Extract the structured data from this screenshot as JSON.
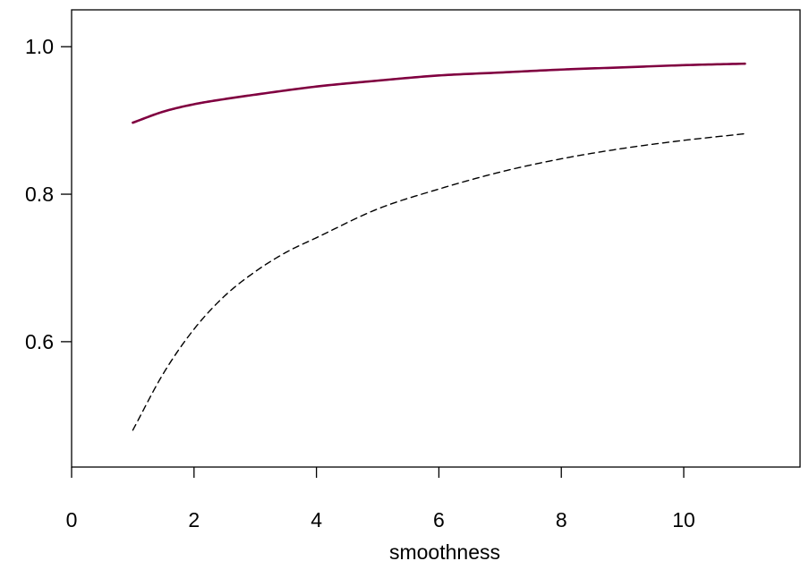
{
  "chart_data": {
    "type": "line",
    "title": "",
    "xlabel": "smoothness",
    "ylabel": "",
    "xlim": [
      0,
      11.9
    ],
    "ylim": [
      0.43,
      1.05
    ],
    "xticks": [
      0,
      2,
      4,
      6,
      8,
      10
    ],
    "yticks": [
      0.6,
      0.8,
      1.0
    ],
    "xtick_labels": [
      "0",
      "2",
      "4",
      "6",
      "8",
      "10"
    ],
    "ytick_labels": [
      "0.6",
      "0.8",
      "1.0"
    ],
    "grid": false,
    "legend": "none",
    "series": [
      {
        "color": "#800040",
        "style": "solid",
        "x": [
          1,
          1.5,
          2,
          2.5,
          3,
          4,
          5,
          6,
          7,
          8,
          9,
          10,
          11
        ],
        "y": [
          0.897,
          0.912,
          0.922,
          0.929,
          0.935,
          0.946,
          0.954,
          0.961,
          0.965,
          0.969,
          0.972,
          0.975,
          0.977
        ]
      },
      {
        "color": "#000000",
        "style": "dashed",
        "x": [
          1,
          1.5,
          2,
          2.5,
          3,
          3.5,
          4,
          5,
          6,
          7,
          8,
          9,
          10,
          11
        ],
        "y": [
          0.48,
          0.557,
          0.617,
          0.662,
          0.695,
          0.721,
          0.741,
          0.78,
          0.807,
          0.83,
          0.848,
          0.862,
          0.873,
          0.882
        ]
      }
    ]
  }
}
